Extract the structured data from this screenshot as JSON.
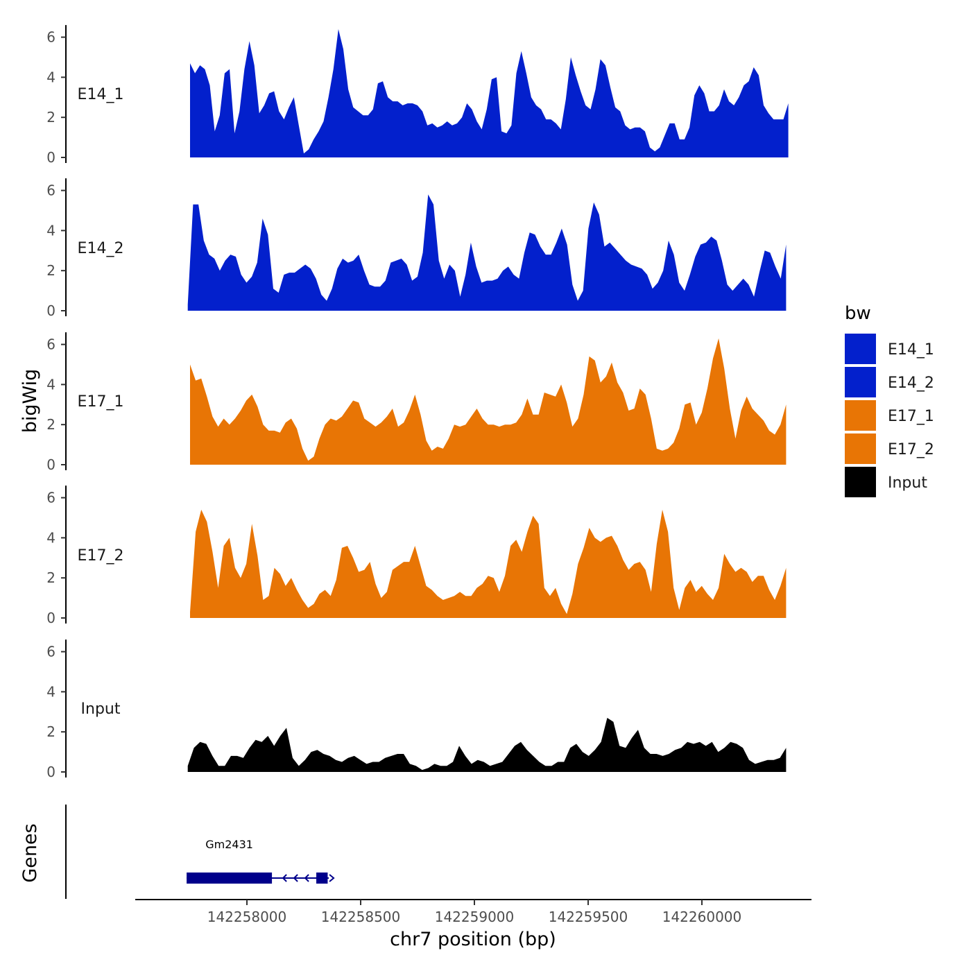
{
  "chart_data": {
    "type": "area",
    "chromosome": "chr7",
    "xlabel": "chr7 position (bp)",
    "ylabel": "bigWig",
    "genes_label": "Genes",
    "xlim": [
      142257600,
      142260380
    ],
    "x_ticks": [
      142258000,
      142258500,
      142259000,
      142259500,
      142260000
    ],
    "x_tick_labels": [
      "142258000",
      "142258500",
      "142259000",
      "142259500",
      "142260000"
    ],
    "ylim": [
      0,
      6.5
    ],
    "y_ticks": [
      0,
      2,
      4,
      6
    ],
    "y_tick_labels": [
      "0",
      "2",
      "4",
      "6"
    ],
    "legend": {
      "title": "bw",
      "entries": [
        {
          "label": "E14_1",
          "color": "#0320cc"
        },
        {
          "label": "E14_2",
          "color": "#0320cc"
        },
        {
          "label": "E17_1",
          "color": "#e87505"
        },
        {
          "label": "E17_2",
          "color": "#e87505"
        },
        {
          "label": "Input",
          "color": "#000000"
        }
      ]
    },
    "series": [
      {
        "name": "E14_1",
        "color": "#0320cc",
        "x_range": [
          142257750,
          142260380
        ],
        "values": [
          4.7,
          4.2,
          4.6,
          4.4,
          3.6,
          1.3,
          2.1,
          4.2,
          4.4,
          1.2,
          2.3,
          4.4,
          5.8,
          4.6,
          2.2,
          2.6,
          3.2,
          3.3,
          2.3,
          1.9,
          2.5,
          3.0,
          1.6,
          0.2,
          0.4,
          0.9,
          1.3,
          1.8,
          3.0,
          4.4,
          6.4,
          5.4,
          3.4,
          2.5,
          2.3,
          2.1,
          2.1,
          2.4,
          3.7,
          3.8,
          3.0,
          2.8,
          2.8,
          2.6,
          2.7,
          2.7,
          2.6,
          2.3,
          1.6,
          1.7,
          1.5,
          1.6,
          1.8,
          1.6,
          1.7,
          2.0,
          2.7,
          2.4,
          1.8,
          1.4,
          2.4,
          3.9,
          4.0,
          1.3,
          1.2,
          1.6,
          4.2,
          5.3,
          4.2,
          3.0,
          2.6,
          2.4,
          1.9,
          1.9,
          1.7,
          1.4,
          2.9,
          5.0,
          4.1,
          3.3,
          2.6,
          2.4,
          3.4,
          4.9,
          4.6,
          3.5,
          2.5,
          2.3,
          1.6,
          1.4,
          1.5,
          1.5,
          1.3,
          0.5,
          0.3,
          0.5,
          1.1,
          1.7,
          1.7,
          0.9,
          0.9,
          1.5,
          3.1,
          3.6,
          3.2,
          2.3,
          2.3,
          2.6,
          3.4,
          2.8,
          2.6,
          3.0,
          3.6,
          3.8,
          4.5,
          4.1,
          2.6,
          2.2,
          1.9,
          1.9,
          1.9,
          2.7
        ]
      },
      {
        "name": "E14_2",
        "color": "#0320cc",
        "x_range": [
          142257740,
          142260370
        ],
        "values": [
          0.3,
          5.3,
          5.3,
          3.5,
          2.8,
          2.6,
          2.0,
          2.5,
          2.8,
          2.7,
          1.8,
          1.4,
          1.7,
          2.4,
          4.6,
          3.8,
          1.1,
          0.9,
          1.8,
          1.9,
          1.9,
          2.1,
          2.3,
          2.1,
          1.6,
          0.8,
          0.5,
          1.1,
          2.1,
          2.6,
          2.4,
          2.5,
          2.8,
          2.0,
          1.3,
          1.2,
          1.2,
          1.5,
          2.4,
          2.5,
          2.6,
          2.3,
          1.5,
          1.7,
          2.9,
          5.8,
          5.3,
          2.5,
          1.6,
          2.3,
          2.0,
          0.7,
          1.8,
          3.4,
          2.2,
          1.4,
          1.5,
          1.5,
          1.6,
          2.0,
          2.2,
          1.8,
          1.6,
          2.9,
          3.9,
          3.8,
          3.2,
          2.8,
          2.8,
          3.4,
          4.1,
          3.3,
          1.3,
          0.5,
          1.0,
          4.1,
          5.4,
          4.8,
          3.2,
          3.4,
          3.1,
          2.8,
          2.5,
          2.3,
          2.2,
          2.1,
          1.8,
          1.1,
          1.4,
          2.0,
          3.5,
          2.8,
          1.4,
          1.0,
          1.8,
          2.7,
          3.3,
          3.4,
          3.7,
          3.5,
          2.5,
          1.3,
          1.0,
          1.3,
          1.6,
          1.3,
          0.7,
          1.9,
          3.0,
          2.9,
          2.2,
          1.6,
          3.3
        ]
      },
      {
        "name": "E17_1",
        "color": "#e87505",
        "x_range": [
          142257750,
          142260370
        ],
        "values": [
          5.0,
          4.2,
          4.3,
          3.4,
          2.4,
          1.9,
          2.3,
          2.0,
          2.3,
          2.7,
          3.2,
          3.5,
          2.9,
          2.0,
          1.7,
          1.7,
          1.6,
          2.1,
          2.3,
          1.8,
          0.8,
          0.2,
          0.4,
          1.3,
          2.0,
          2.3,
          2.2,
          2.4,
          2.8,
          3.2,
          3.1,
          2.3,
          2.1,
          1.9,
          2.1,
          2.4,
          2.8,
          1.9,
          2.1,
          2.7,
          3.5,
          2.5,
          1.2,
          0.7,
          0.9,
          0.8,
          1.3,
          2.0,
          1.9,
          2.0,
          2.4,
          2.8,
          2.3,
          2.0,
          2.0,
          1.9,
          2.0,
          2.0,
          2.1,
          2.5,
          3.3,
          2.5,
          2.5,
          3.6,
          3.5,
          3.4,
          4.0,
          3.1,
          1.9,
          2.3,
          3.5,
          5.4,
          5.2,
          4.1,
          4.4,
          5.1,
          4.1,
          3.6,
          2.7,
          2.8,
          3.8,
          3.5,
          2.3,
          0.8,
          0.7,
          0.8,
          1.1,
          1.8,
          3.0,
          3.1,
          2.0,
          2.6,
          3.8,
          5.3,
          6.3,
          4.8,
          2.8,
          1.3,
          2.7,
          3.4,
          2.8,
          2.5,
          2.2,
          1.7,
          1.5,
          2.0,
          3.0
        ]
      },
      {
        "name": "E17_2",
        "color": "#e87505",
        "x_range": [
          142257750,
          142260370
        ],
        "values": [
          0.3,
          4.3,
          5.4,
          4.8,
          3.3,
          1.5,
          3.6,
          4.0,
          2.5,
          2.0,
          2.7,
          4.7,
          3.1,
          0.9,
          1.1,
          2.5,
          2.2,
          1.6,
          2.0,
          1.4,
          0.9,
          0.5,
          0.7,
          1.2,
          1.4,
          1.1,
          1.9,
          3.5,
          3.6,
          3.0,
          2.3,
          2.4,
          2.8,
          1.7,
          1.0,
          1.3,
          2.4,
          2.6,
          2.8,
          2.8,
          3.6,
          2.6,
          1.6,
          1.4,
          1.1,
          0.9,
          1.0,
          1.1,
          1.3,
          1.1,
          1.1,
          1.5,
          1.7,
          2.1,
          2.0,
          1.3,
          2.1,
          3.6,
          3.9,
          3.3,
          4.3,
          5.1,
          4.7,
          1.5,
          1.1,
          1.5,
          0.7,
          0.2,
          1.2,
          2.7,
          3.5,
          4.5,
          4.0,
          3.8,
          4.0,
          4.1,
          3.6,
          2.9,
          2.4,
          2.7,
          2.8,
          2.4,
          1.3,
          3.7,
          5.4,
          4.3,
          1.5,
          0.4,
          1.5,
          1.9,
          1.3,
          1.6,
          1.2,
          0.9,
          1.5,
          3.2,
          2.7,
          2.3,
          2.5,
          2.3,
          1.8,
          2.1,
          2.1,
          1.4,
          0.9,
          1.6,
          2.5
        ]
      },
      {
        "name": "Input",
        "color": "#000000",
        "x_range": [
          142257740,
          142260370
        ],
        "values": [
          0.3,
          1.2,
          1.5,
          1.4,
          0.8,
          0.3,
          0.3,
          0.8,
          0.8,
          0.7,
          1.2,
          1.6,
          1.5,
          1.8,
          1.3,
          1.8,
          2.2,
          0.7,
          0.3,
          0.6,
          1.0,
          1.1,
          0.9,
          0.8,
          0.6,
          0.5,
          0.7,
          0.8,
          0.6,
          0.4,
          0.5,
          0.5,
          0.7,
          0.8,
          0.9,
          0.9,
          0.4,
          0.3,
          0.1,
          0.2,
          0.4,
          0.3,
          0.3,
          0.5,
          1.3,
          0.8,
          0.4,
          0.6,
          0.5,
          0.3,
          0.4,
          0.5,
          0.9,
          1.3,
          1.5,
          1.1,
          0.8,
          0.5,
          0.3,
          0.3,
          0.5,
          0.5,
          1.2,
          1.4,
          1.0,
          0.8,
          1.1,
          1.5,
          2.7,
          2.5,
          1.3,
          1.2,
          1.7,
          2.1,
          1.2,
          0.9,
          0.9,
          0.8,
          0.9,
          1.1,
          1.2,
          1.5,
          1.4,
          1.5,
          1.3,
          1.5,
          1.0,
          1.2,
          1.5,
          1.4,
          1.2,
          0.6,
          0.4,
          0.5,
          0.6,
          0.6,
          0.7,
          1.2
        ]
      }
    ],
    "genes": [
      {
        "name": "Gm2431",
        "strand": "-",
        "start": 142257735,
        "end": 142258360,
        "exons": [
          {
            "start": 142257735,
            "end": 142258110
          },
          {
            "start": 142258305,
            "end": 142258355
          }
        ]
      }
    ]
  }
}
